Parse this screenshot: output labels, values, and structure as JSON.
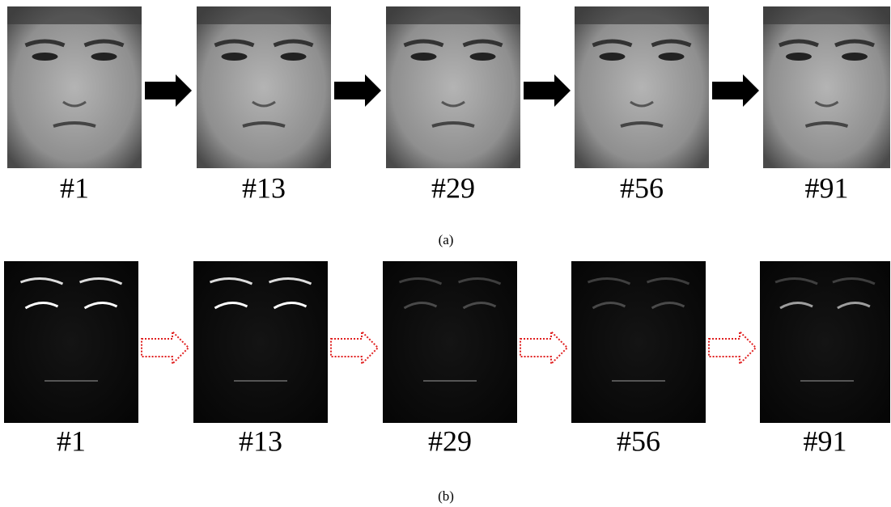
{
  "panels": [
    {
      "frames": [
        {
          "label": "#1"
        },
        {
          "label": "#13"
        },
        {
          "label": "#29"
        },
        {
          "label": "#56"
        },
        {
          "label": "#91"
        }
      ],
      "caption": "(a)"
    },
    {
      "frames": [
        {
          "label": "#1"
        },
        {
          "label": "#13"
        },
        {
          "label": "#29"
        },
        {
          "label": "#56"
        },
        {
          "label": "#91"
        }
      ],
      "caption": "(b)"
    }
  ]
}
